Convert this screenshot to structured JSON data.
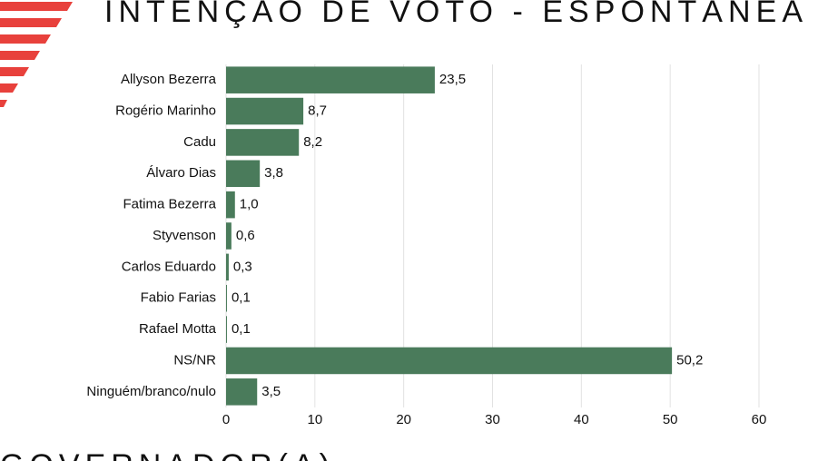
{
  "chart_data": {
    "type": "bar",
    "orientation": "horizontal",
    "title": "INTENÇÃO DE VOTO - ESPONTÂNEA",
    "subtitle": "GOVERNADOR(A)",
    "categories": [
      "Allyson Bezerra",
      "Rogério Marinho",
      "Cadu",
      "Álvaro Dias",
      "Fatima Bezerra",
      "Styvenson",
      "Carlos Eduardo",
      "Fabio Farias",
      "Rafael Motta",
      "NS/NR",
      "Ninguém/branco/nulo"
    ],
    "values": [
      23.5,
      8.7,
      8.2,
      3.8,
      1.0,
      0.6,
      0.3,
      0.1,
      0.1,
      50.2,
      3.5
    ],
    "value_labels": [
      "23,5",
      "8,7",
      "8,2",
      "3,8",
      "1,0",
      "0,6",
      "0,3",
      "0,1",
      "0,1",
      "50,2",
      "3,5"
    ],
    "color": "#4a7b5b",
    "xlim": [
      0,
      60
    ],
    "xticks": [
      0,
      10,
      20,
      30,
      40,
      50,
      60
    ],
    "grid": true
  }
}
